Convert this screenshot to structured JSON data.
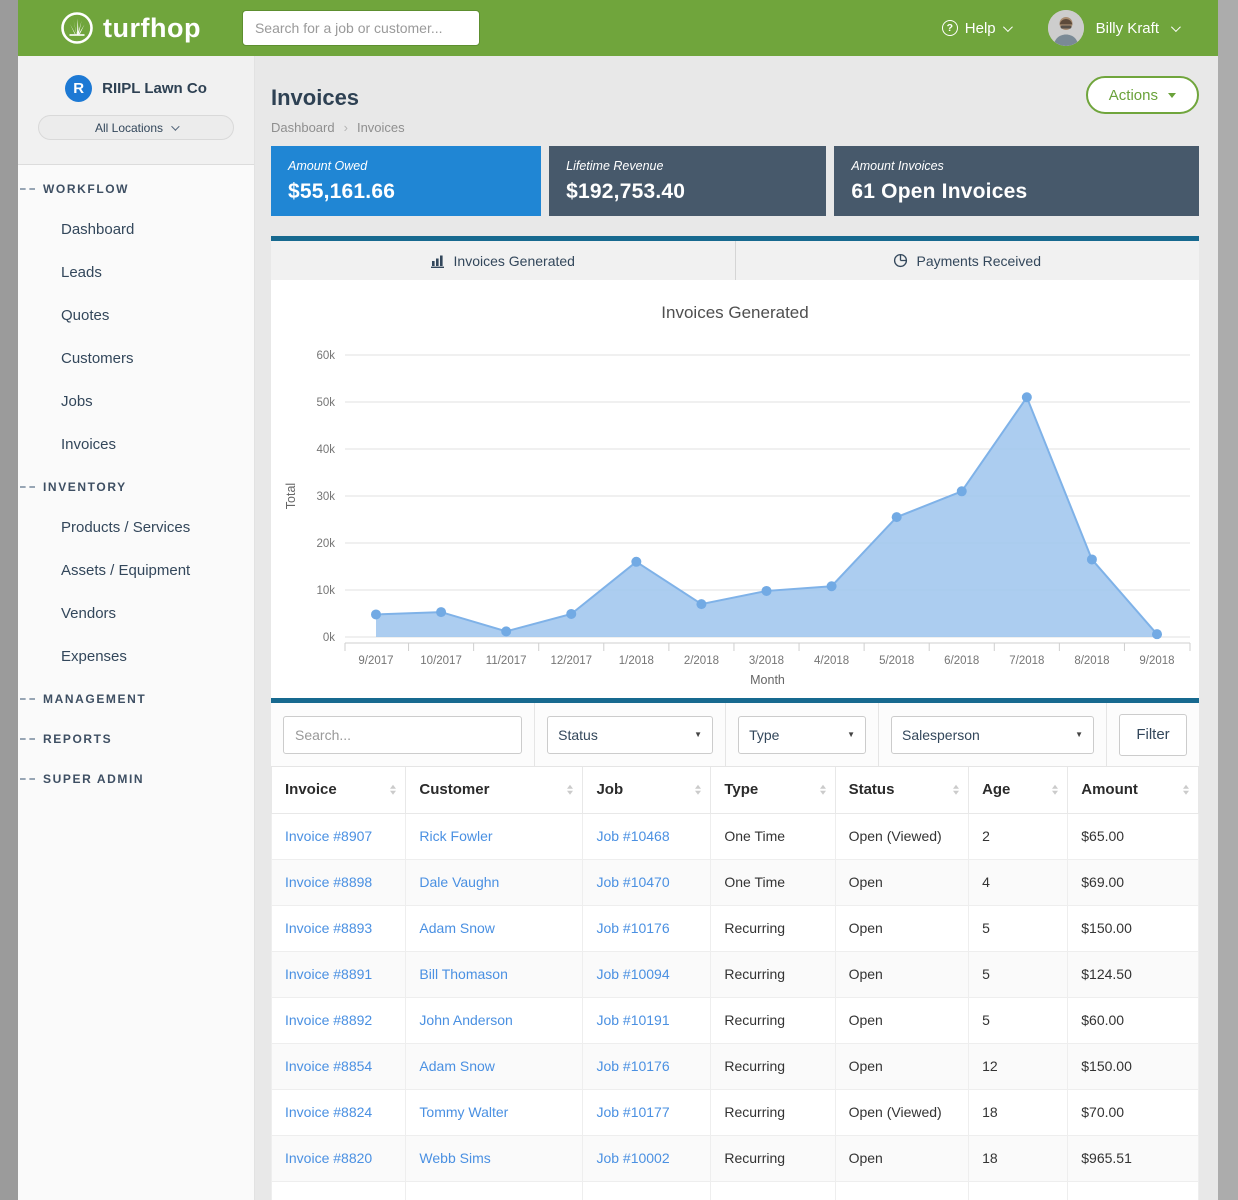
{
  "header": {
    "logo_text": "turfhop",
    "search_placeholder": "Search for a job or customer...",
    "help_label": "Help",
    "user_name": "Billy Kraft"
  },
  "sidebar": {
    "company_name": "RIIPL Lawn Co",
    "company_initial": "R",
    "location_selector": "All Locations",
    "sections": [
      {
        "label": "WORKFLOW",
        "items": [
          "Dashboard",
          "Leads",
          "Quotes",
          "Customers",
          "Jobs",
          "Invoices"
        ]
      },
      {
        "label": "INVENTORY",
        "items": [
          "Products / Services",
          "Assets / Equipment",
          "Vendors",
          "Expenses"
        ]
      },
      {
        "label": "MANAGEMENT",
        "items": []
      },
      {
        "label": "REPORTS",
        "items": []
      },
      {
        "label": "SUPER ADMIN",
        "items": []
      }
    ]
  },
  "page": {
    "title": "Invoices",
    "breadcrumb": [
      "Dashboard",
      "Invoices"
    ],
    "actions_label": "Actions"
  },
  "stats": [
    {
      "label": "Amount Owed",
      "value": "$55,161.66",
      "color": "#2086d4"
    },
    {
      "label": "Lifetime Revenue",
      "value": "$192,753.40",
      "color": "#47596b"
    },
    {
      "label": "Amount Invoices",
      "value": "61 Open Invoices",
      "color": "#47596b"
    }
  ],
  "tabs": [
    {
      "label": "Invoices Generated",
      "icon": "bar-chart-icon",
      "active": true
    },
    {
      "label": "Payments Received",
      "icon": "pie-chart-icon",
      "active": false
    }
  ],
  "chart_data": {
    "type": "area",
    "title": "Invoices Generated",
    "xlabel": "Month",
    "ylabel": "Total",
    "x": [
      "9/2017",
      "10/2017",
      "11/2017",
      "12/2017",
      "1/2018",
      "2/2018",
      "3/2018",
      "4/2018",
      "5/2018",
      "6/2018",
      "7/2018",
      "8/2018",
      "9/2018"
    ],
    "values": [
      4800,
      5300,
      1200,
      4900,
      16000,
      7000,
      9800,
      10800,
      25500,
      31000,
      51000,
      16500,
      600
    ],
    "ylim": [
      0,
      60000
    ],
    "ytick_step": 10000,
    "ytick_labels": [
      "0k",
      "10k",
      "20k",
      "30k",
      "40k",
      "50k",
      "60k"
    ],
    "grid": true,
    "legend": "none",
    "colors": {
      "area": "#a3c8ee",
      "line": "#7fb2e8",
      "marker": "#72aae4"
    }
  },
  "filters": {
    "search_placeholder": "Search...",
    "selects": [
      "Status",
      "Type",
      "Salesperson"
    ],
    "button_label": "Filter"
  },
  "table": {
    "columns": [
      "Invoice",
      "Customer",
      "Job",
      "Type",
      "Status",
      "Age",
      "Amount"
    ],
    "link_columns": [
      0,
      1,
      2
    ],
    "col_widths": [
      "14.5%",
      "19.1%",
      "13.8%",
      "13.4%",
      "14.4%",
      "10.7%",
      "14.1%"
    ],
    "rows": [
      [
        "Invoice #8907",
        "Rick Fowler",
        "Job #10468",
        "One Time",
        "Open (Viewed)",
        "2",
        "$65.00"
      ],
      [
        "Invoice #8898",
        "Dale Vaughn",
        "Job #10470",
        "One Time",
        "Open",
        "4",
        "$69.00"
      ],
      [
        "Invoice #8893",
        "Adam Snow",
        "Job #10176",
        "Recurring",
        "Open",
        "5",
        "$150.00"
      ],
      [
        "Invoice #8891",
        "Bill Thomason",
        "Job #10094",
        "Recurring",
        "Open",
        "5",
        "$124.50"
      ],
      [
        "Invoice #8892",
        "John Anderson",
        "Job #10191",
        "Recurring",
        "Open",
        "5",
        "$60.00"
      ],
      [
        "Invoice #8854",
        "Adam Snow",
        "Job #10176",
        "Recurring",
        "Open",
        "12",
        "$150.00"
      ],
      [
        "Invoice #8824",
        "Tommy Walter",
        "Job #10177",
        "Recurring",
        "Open (Viewed)",
        "18",
        "$70.00"
      ],
      [
        "Invoice #8820",
        "Webb Sims",
        "Job #10002",
        "Recurring",
        "Open",
        "18",
        "$965.51"
      ]
    ]
  }
}
